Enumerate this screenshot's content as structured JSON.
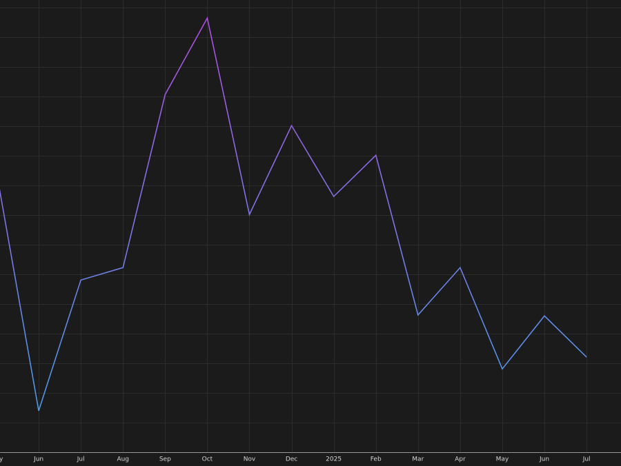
{
  "chart_data": {
    "type": "line",
    "categories": [
      "May",
      "Jun",
      "Jul",
      "Aug",
      "Sep",
      "Oct",
      "Nov",
      "Dec",
      "2025",
      "Feb",
      "Mar",
      "Apr",
      "May",
      "Jun",
      "Jul"
    ],
    "values": [
      9.44,
      1.4,
      5.81,
      6.23,
      12.07,
      14.65,
      8.02,
      11.02,
      8.63,
      10.02,
      4.63,
      6.23,
      2.81,
      4.6,
      3.21
    ],
    "color_low": "#3fa2e6",
    "color_high": "#b54ae2",
    "ylim": [
      0,
      15.26
    ],
    "yticks": [
      1,
      2,
      3,
      4,
      5,
      6,
      7,
      8,
      9,
      10,
      11,
      12,
      13,
      14,
      15
    ],
    "grid": true
  }
}
